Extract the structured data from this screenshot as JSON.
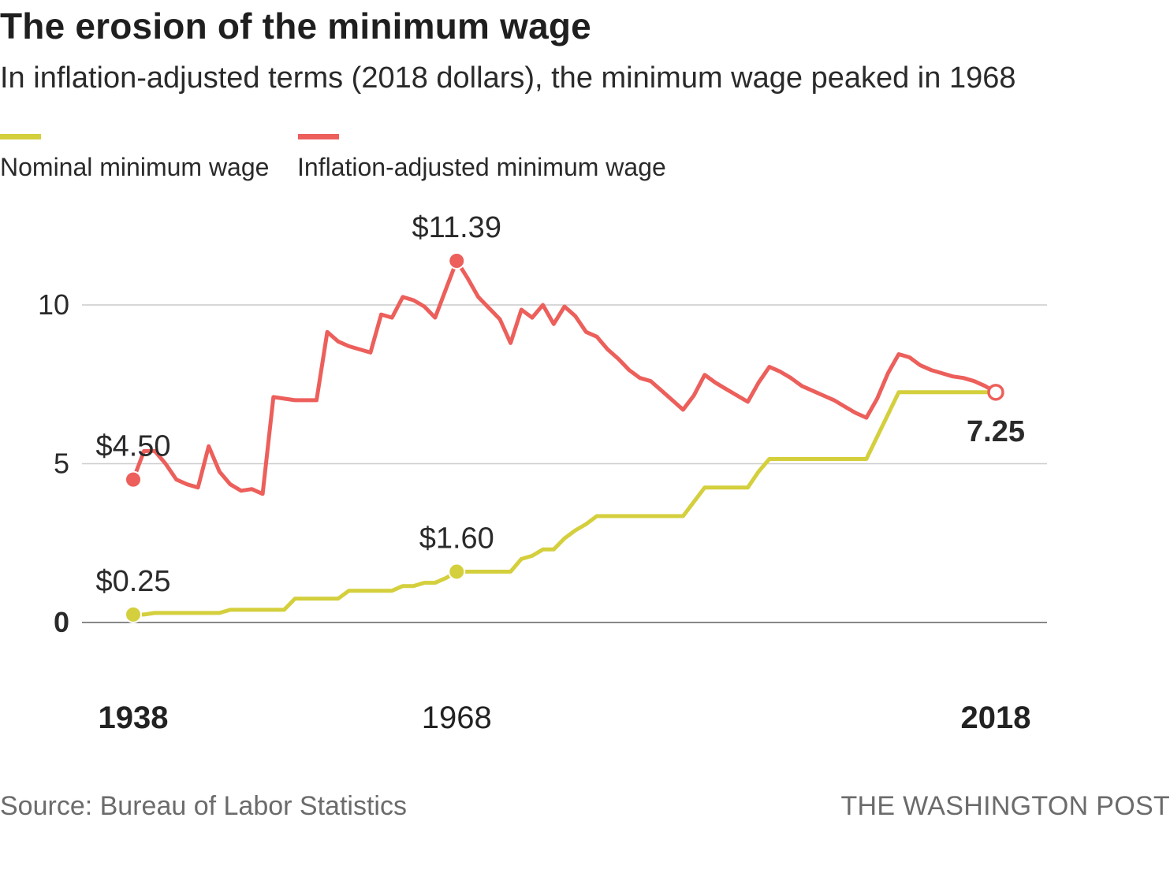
{
  "title": "The erosion of the minimum wage",
  "subtitle": "In inflation-adjusted terms (2018 dollars), the minimum wage peaked in 1968",
  "legend": {
    "nominal_label": "Nominal minimum wage",
    "adjusted_label": "Inflation-adjusted minimum wage"
  },
  "colors": {
    "nominal": "#d4cf3c",
    "adjusted": "#ec5f5b",
    "grid": "#cccccc",
    "baseline": "#888888"
  },
  "footer": {
    "source": "Source: Bureau of Labor Statistics",
    "brand": "THE WASHINGTON POST"
  },
  "chart_data": {
    "type": "line",
    "xlim": [
      1938,
      2018
    ],
    "ylim": [
      0,
      11.39
    ],
    "grid": true,
    "legend_position": "top-left",
    "x_ticks": [
      {
        "label": "1938",
        "value": 1938,
        "bold": true
      },
      {
        "label": "1968",
        "value": 1968,
        "bold": false
      },
      {
        "label": "2018",
        "value": 2018,
        "bold": true
      }
    ],
    "y_ticks": [
      {
        "label": "0",
        "value": 0,
        "bold": true
      },
      {
        "label": "5",
        "value": 5,
        "bold": false
      },
      {
        "label": "10",
        "value": 10,
        "bold": false
      }
    ],
    "series": [
      {
        "name": "Nominal minimum wage",
        "color": "#d4cf3c",
        "points": [
          [
            1938,
            0.25
          ],
          [
            1939,
            0.25
          ],
          [
            1940,
            0.3
          ],
          [
            1941,
            0.3
          ],
          [
            1942,
            0.3
          ],
          [
            1943,
            0.3
          ],
          [
            1944,
            0.3
          ],
          [
            1945,
            0.3
          ],
          [
            1946,
            0.3
          ],
          [
            1947,
            0.4
          ],
          [
            1948,
            0.4
          ],
          [
            1949,
            0.4
          ],
          [
            1950,
            0.4
          ],
          [
            1951,
            0.4
          ],
          [
            1952,
            0.4
          ],
          [
            1953,
            0.75
          ],
          [
            1954,
            0.75
          ],
          [
            1955,
            0.75
          ],
          [
            1956,
            0.75
          ],
          [
            1957,
            0.75
          ],
          [
            1958,
            1.0
          ],
          [
            1959,
            1.0
          ],
          [
            1960,
            1.0
          ],
          [
            1961,
            1.0
          ],
          [
            1962,
            1.0
          ],
          [
            1963,
            1.15
          ],
          [
            1964,
            1.15
          ],
          [
            1965,
            1.25
          ],
          [
            1966,
            1.25
          ],
          [
            1967,
            1.4
          ],
          [
            1968,
            1.6
          ],
          [
            1969,
            1.6
          ],
          [
            1970,
            1.6
          ],
          [
            1971,
            1.6
          ],
          [
            1972,
            1.6
          ],
          [
            1973,
            1.6
          ],
          [
            1974,
            2.0
          ],
          [
            1975,
            2.1
          ],
          [
            1976,
            2.3
          ],
          [
            1977,
            2.3
          ],
          [
            1978,
            2.65
          ],
          [
            1979,
            2.9
          ],
          [
            1980,
            3.1
          ],
          [
            1981,
            3.35
          ],
          [
            1982,
            3.35
          ],
          [
            1983,
            3.35
          ],
          [
            1984,
            3.35
          ],
          [
            1985,
            3.35
          ],
          [
            1986,
            3.35
          ],
          [
            1987,
            3.35
          ],
          [
            1988,
            3.35
          ],
          [
            1989,
            3.35
          ],
          [
            1990,
            3.8
          ],
          [
            1991,
            4.25
          ],
          [
            1992,
            4.25
          ],
          [
            1993,
            4.25
          ],
          [
            1994,
            4.25
          ],
          [
            1995,
            4.25
          ],
          [
            1996,
            4.75
          ],
          [
            1997,
            5.15
          ],
          [
            1998,
            5.15
          ],
          [
            1999,
            5.15
          ],
          [
            2000,
            5.15
          ],
          [
            2001,
            5.15
          ],
          [
            2002,
            5.15
          ],
          [
            2003,
            5.15
          ],
          [
            2004,
            5.15
          ],
          [
            2005,
            5.15
          ],
          [
            2006,
            5.15
          ],
          [
            2007,
            5.85
          ],
          [
            2008,
            6.55
          ],
          [
            2009,
            7.25
          ],
          [
            2010,
            7.25
          ],
          [
            2011,
            7.25
          ],
          [
            2012,
            7.25
          ],
          [
            2013,
            7.25
          ],
          [
            2014,
            7.25
          ],
          [
            2015,
            7.25
          ],
          [
            2016,
            7.25
          ],
          [
            2017,
            7.25
          ],
          [
            2018,
            7.25
          ]
        ]
      },
      {
        "name": "Inflation-adjusted minimum wage",
        "color": "#ec5f5b",
        "points": [
          [
            1938,
            4.5
          ],
          [
            1939,
            5.4
          ],
          [
            1940,
            5.4
          ],
          [
            1941,
            5.0
          ],
          [
            1942,
            4.5
          ],
          [
            1943,
            4.35
          ],
          [
            1944,
            4.25
          ],
          [
            1945,
            5.55
          ],
          [
            1946,
            4.75
          ],
          [
            1947,
            4.35
          ],
          [
            1948,
            4.15
          ],
          [
            1949,
            4.2
          ],
          [
            1950,
            4.05
          ],
          [
            1951,
            7.1
          ],
          [
            1952,
            7.05
          ],
          [
            1953,
            7.0
          ],
          [
            1954,
            7.0
          ],
          [
            1955,
            7.0
          ],
          [
            1956,
            9.15
          ],
          [
            1957,
            8.85
          ],
          [
            1958,
            8.7
          ],
          [
            1959,
            8.6
          ],
          [
            1960,
            8.5
          ],
          [
            1961,
            9.7
          ],
          [
            1962,
            9.6
          ],
          [
            1963,
            10.25
          ],
          [
            1964,
            10.15
          ],
          [
            1965,
            9.95
          ],
          [
            1966,
            9.6
          ],
          [
            1967,
            10.5
          ],
          [
            1968,
            11.39
          ],
          [
            1969,
            10.85
          ],
          [
            1970,
            10.25
          ],
          [
            1971,
            9.9
          ],
          [
            1972,
            9.55
          ],
          [
            1973,
            8.8
          ],
          [
            1974,
            9.85
          ],
          [
            1975,
            9.6
          ],
          [
            1976,
            10.0
          ],
          [
            1977,
            9.4
          ],
          [
            1978,
            9.95
          ],
          [
            1979,
            9.65
          ],
          [
            1980,
            9.15
          ],
          [
            1981,
            9.0
          ],
          [
            1982,
            8.6
          ],
          [
            1983,
            8.3
          ],
          [
            1984,
            7.95
          ],
          [
            1985,
            7.7
          ],
          [
            1986,
            7.6
          ],
          [
            1987,
            7.3
          ],
          [
            1988,
            7.0
          ],
          [
            1989,
            6.7
          ],
          [
            1990,
            7.15
          ],
          [
            1991,
            7.8
          ],
          [
            1992,
            7.55
          ],
          [
            1993,
            7.35
          ],
          [
            1994,
            7.15
          ],
          [
            1995,
            6.95
          ],
          [
            1996,
            7.55
          ],
          [
            1997,
            8.05
          ],
          [
            1998,
            7.9
          ],
          [
            1999,
            7.7
          ],
          [
            2000,
            7.45
          ],
          [
            2001,
            7.3
          ],
          [
            2002,
            7.15
          ],
          [
            2003,
            7.0
          ],
          [
            2004,
            6.8
          ],
          [
            2005,
            6.6
          ],
          [
            2006,
            6.45
          ],
          [
            2007,
            7.05
          ],
          [
            2008,
            7.85
          ],
          [
            2009,
            8.45
          ],
          [
            2010,
            8.35
          ],
          [
            2011,
            8.1
          ],
          [
            2012,
            7.95
          ],
          [
            2013,
            7.85
          ],
          [
            2014,
            7.75
          ],
          [
            2015,
            7.7
          ],
          [
            2016,
            7.6
          ],
          [
            2017,
            7.45
          ],
          [
            2018,
            7.25
          ]
        ]
      }
    ],
    "annotations": [
      {
        "series": 1,
        "x": 1938,
        "y": 4.5,
        "label": "$4.50",
        "marker": "filled"
      },
      {
        "series": 1,
        "x": 1968,
        "y": 11.39,
        "label": "$11.39",
        "marker": "filled"
      },
      {
        "series": 0,
        "x": 1938,
        "y": 0.25,
        "label": "$0.25",
        "marker": "filled"
      },
      {
        "series": 0,
        "x": 1968,
        "y": 1.6,
        "label": "$1.60",
        "marker": "filled"
      },
      {
        "series": 1,
        "x": 2018,
        "y": 7.25,
        "label": "7.25",
        "marker": "open",
        "bold": true
      }
    ]
  }
}
